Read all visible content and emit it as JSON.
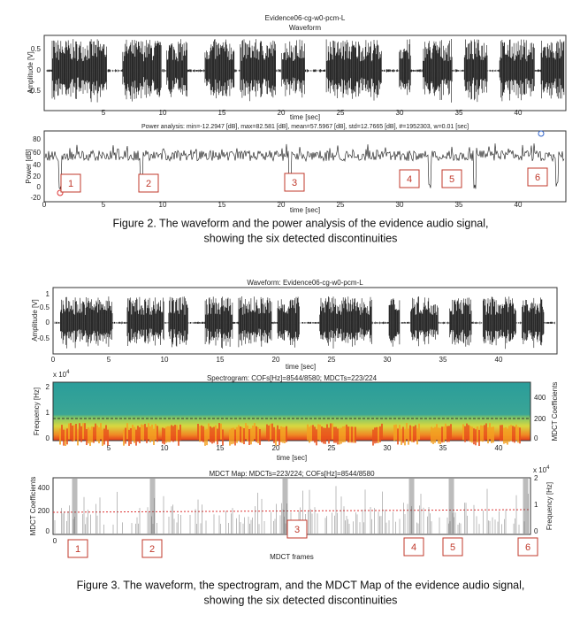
{
  "figure2": {
    "waveform": {
      "title": "Evidence06-cg-w0-pcm-L",
      "subtitle": "Waveform",
      "ylabel": "Amplitude [V]",
      "xlabel": "time [sec]",
      "yticks": [
        "0.5",
        "0",
        "-0.5"
      ],
      "xticks": [
        "5",
        "10",
        "15",
        "20",
        "25",
        "30",
        "35",
        "40"
      ]
    },
    "power": {
      "title": "Power analysis: min=-12.2947 [dB], max=82.581 [dB], mean=57.5967 [dB], std=12.7665 [dB], #=1952303, w=0.01 [sec]",
      "ylabel": "Power [dB]",
      "xlabel": "time [sec]",
      "yticks": [
        "80",
        "60",
        "40",
        "20",
        "0",
        "-20"
      ],
      "xticks": [
        "0",
        "5",
        "10",
        "15",
        "20",
        "25",
        "30",
        "35",
        "40"
      ],
      "markers": [
        "1",
        "2",
        "3",
        "4",
        "5",
        "6"
      ]
    },
    "caption": [
      "Figure 2. The waveform and the power analysis of the evidence audio signal,",
      "showing the six detected discontinuities"
    ]
  },
  "figure3": {
    "waveform": {
      "title": "Waveform: Evidence06-cg-w0-pcm-L",
      "ylabel": "Amplitude [V]",
      "xlabel": "time [sec]",
      "yticks": [
        "1",
        "0.5",
        "0",
        "-0.5"
      ],
      "xticks": [
        "0",
        "5",
        "10",
        "15",
        "20",
        "25",
        "30",
        "35",
        "40"
      ]
    },
    "spectrogram": {
      "title": "Spectrogram: COFs[Hz]=8544/8580; MDCTs=223/224",
      "ylabel": "Frequency [Hz]",
      "y2label": "MDCT Coefficients",
      "exponent": {
        "base": "x 10",
        "power": "4"
      },
      "yticks": [
        "2",
        "1",
        "0"
      ],
      "y2ticks": [
        "400",
        "200",
        "0"
      ],
      "xticks": [
        "5",
        "10",
        "15",
        "20",
        "25",
        "30",
        "35",
        "40"
      ],
      "xlabel": "time [sec]"
    },
    "mdct_map": {
      "title": "MDCT Map: MDCTs=223/224; COFs[Hz]=8544/8580",
      "ylabel": "MDCT Coefficients",
      "y2label": "Frequency [Hz]",
      "exponent": {
        "base": "x 10",
        "power": "4"
      },
      "yticks": [
        "400",
        "200",
        "0"
      ],
      "y2ticks": [
        "2",
        "1",
        "0"
      ],
      "xticks": [
        "0"
      ],
      "xlabel": "MDCT frames",
      "markers": [
        "1",
        "2",
        "3",
        "4",
        "5",
        "6"
      ]
    },
    "caption": [
      "Figure 3. The waveform, the spectrogram, and the MDCT Map of the evidence audio signal,",
      "showing the six detected discontinuities"
    ]
  }
}
